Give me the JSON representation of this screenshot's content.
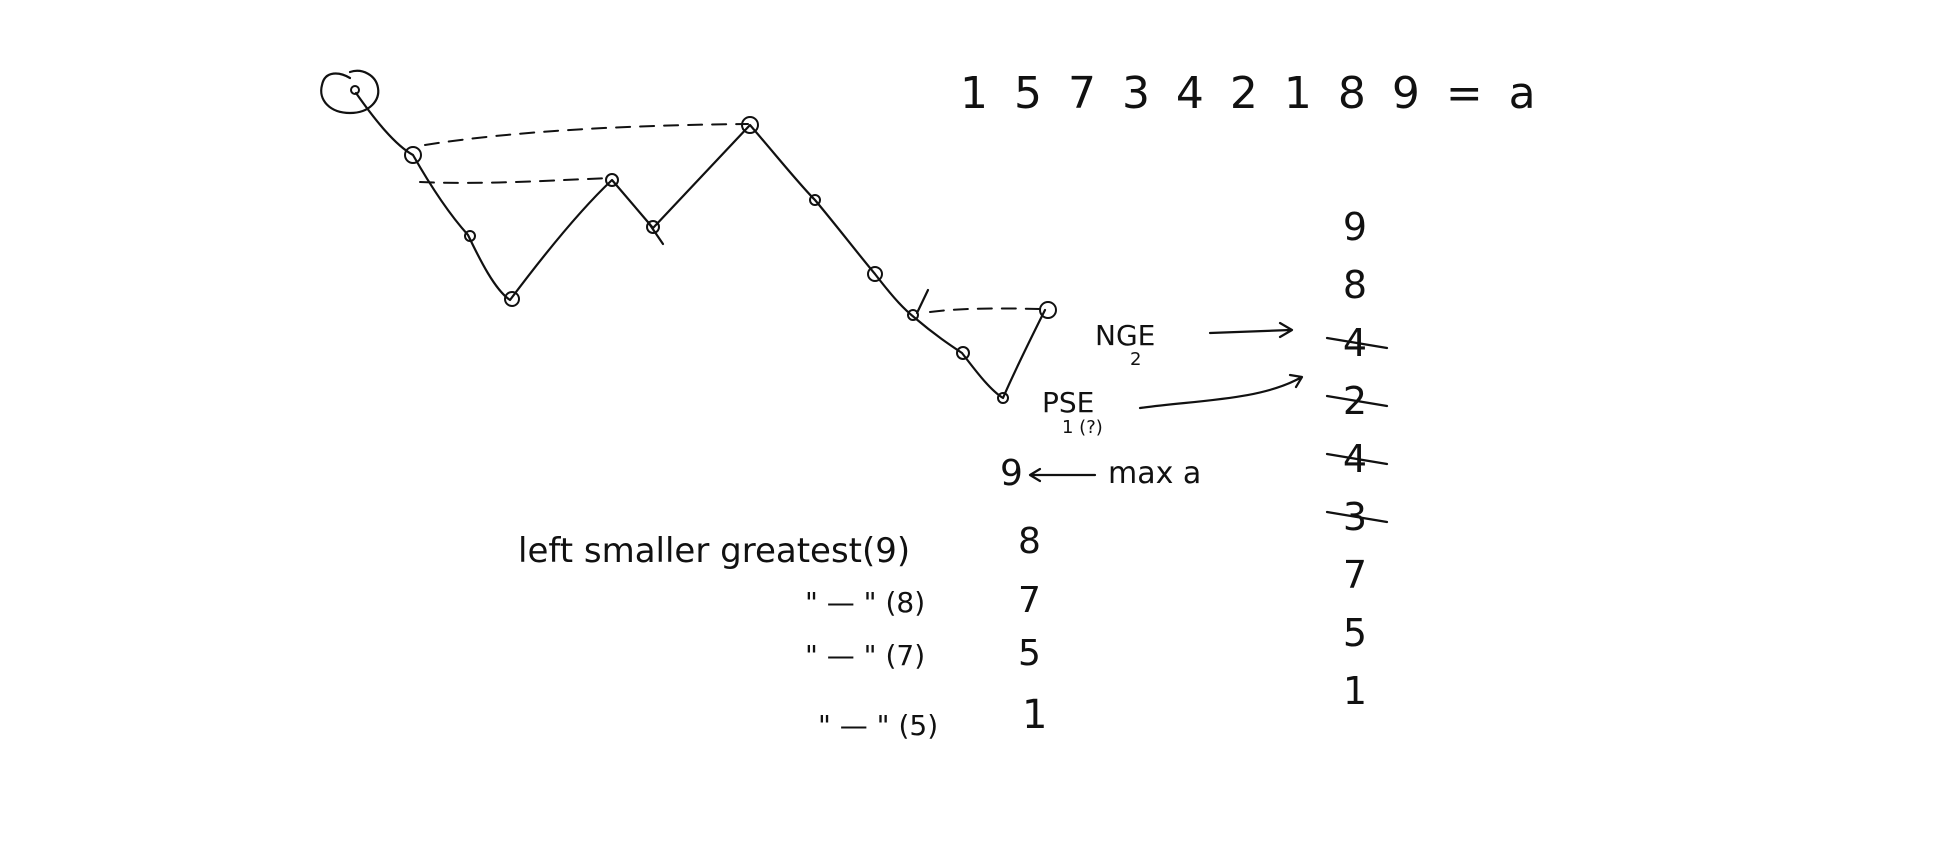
{
  "sequence": {
    "text": "1 5 7 3 4 2 1 8 9 = a"
  },
  "stack": {
    "items": [
      {
        "label": "9",
        "struck": false
      },
      {
        "label": "8",
        "struck": false
      },
      {
        "label": "4",
        "struck": true
      },
      {
        "label": "2",
        "struck": true
      },
      {
        "label": "4",
        "struck": true
      },
      {
        "label": "3",
        "struck": true
      },
      {
        "label": "7",
        "struck": false
      },
      {
        "label": "5",
        "struck": false
      },
      {
        "label": "1",
        "struck": false
      }
    ]
  },
  "annotations": {
    "nge": "NGE",
    "nge_sub": "2",
    "pse": "PSE",
    "pse_sub": "1 (?)",
    "max_value": "9",
    "max_label": "max a"
  },
  "rules": {
    "heading": "left smaller greatest(9)",
    "rows": [
      {
        "text": "\" — \" (8)",
        "result": "8"
      },
      {
        "text": "\" — \" (7)",
        "result": "7"
      },
      {
        "text": "\" — \" (5)",
        "result": "5"
      },
      {
        "text": "\" — \" (5)",
        "result": "1"
      }
    ]
  }
}
